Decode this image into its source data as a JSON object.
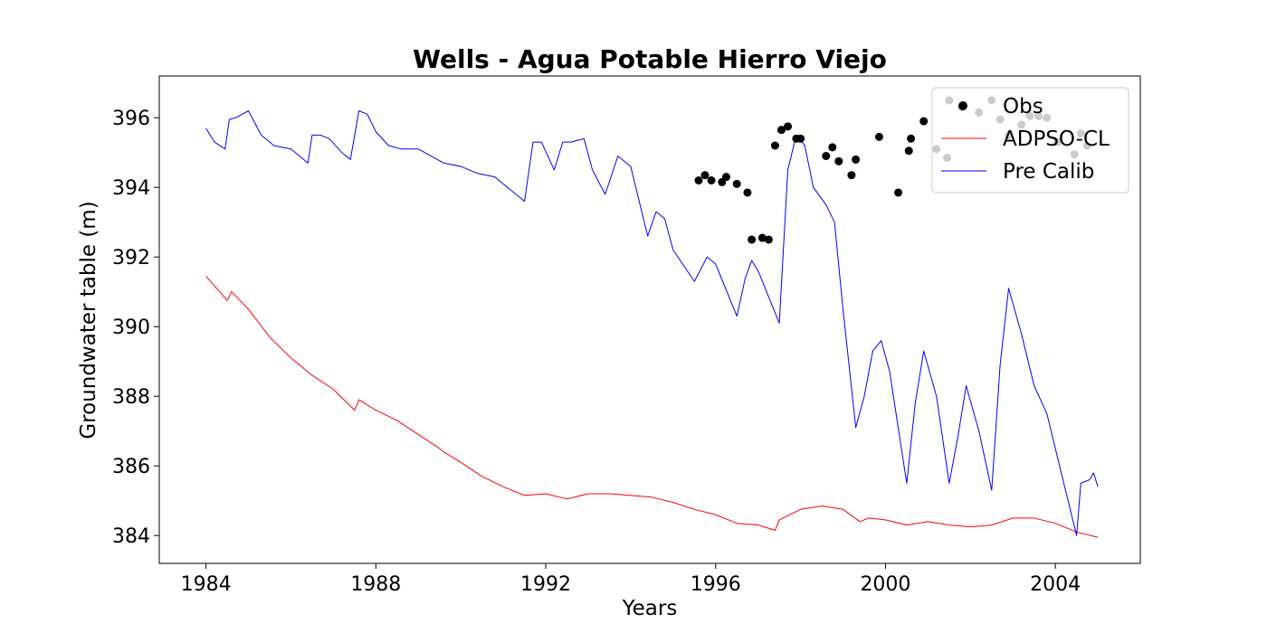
{
  "chart_data": {
    "type": "line",
    "title": "Wells - Agua Potable Hierro Viejo",
    "xlabel": "Years",
    "ylabel": "Groundwater table (m)",
    "xlim": [
      1982.9,
      2006.0
    ],
    "ylim": [
      383.2,
      397.2
    ],
    "x_ticks": [
      1984,
      1988,
      1992,
      1996,
      2000,
      2004
    ],
    "x_tick_labels": [
      "1984",
      "1988",
      "1992",
      "1996",
      "2000",
      "2004"
    ],
    "y_ticks": [
      384,
      386,
      388,
      390,
      392,
      394,
      396
    ],
    "y_tick_labels": [
      "384",
      "386",
      "388",
      "390",
      "392",
      "394",
      "396"
    ],
    "grid": false,
    "legend_position": "upper right",
    "legend": [
      "Obs",
      "ADPSO-CL",
      "Pre Calib"
    ],
    "series": [
      {
        "name": "Obs",
        "kind": "scatter",
        "color": "#000000",
        "x": [
          1995.6,
          1995.75,
          1995.9,
          1996.15,
          1996.25,
          1996.5,
          1996.75,
          1996.85,
          1997.1,
          1997.25,
          1997.4,
          1997.55,
          1997.7,
          1997.9,
          1998.0,
          1998.6,
          1998.75,
          1998.9,
          1999.2,
          1999.3,
          1999.85,
          2000.3,
          2000.55,
          2000.6,
          2000.9,
          2001.2,
          2001.45,
          2001.5,
          2001.8,
          2002.2,
          2002.5,
          2002.7,
          2002.9,
          2003.2,
          2003.4,
          2003.6,
          2003.8,
          2004.05,
          2004.45,
          2004.6,
          2004.75
        ],
        "y": [
          394.2,
          394.35,
          394.2,
          394.15,
          394.3,
          394.1,
          393.85,
          392.5,
          392.55,
          392.5,
          395.2,
          395.65,
          395.75,
          395.4,
          395.4,
          394.9,
          395.15,
          394.75,
          394.35,
          394.8,
          395.45,
          393.85,
          395.05,
          395.4,
          395.9,
          395.1,
          394.85,
          396.5,
          396.3,
          396.15,
          396.5,
          395.95,
          395.5,
          395.8,
          396.05,
          396.05,
          396.0,
          395.3,
          394.95,
          395.55,
          395.2
        ]
      },
      {
        "name": "ADPSO-CL",
        "kind": "line",
        "color": "#ff0000",
        "x": [
          1984.0,
          1984.5,
          1984.6,
          1985.0,
          1985.5,
          1986.0,
          1986.5,
          1987.0,
          1987.5,
          1987.6,
          1988.0,
          1988.5,
          1989.0,
          1989.5,
          1989.6,
          1990.0,
          1990.5,
          1991.0,
          1991.5,
          1992.0,
          1992.5,
          1993.0,
          1993.5,
          1994.0,
          1994.5,
          1995.0,
          1995.5,
          1996.0,
          1996.5,
          1997.0,
          1997.4,
          1997.5,
          1998.0,
          1998.5,
          1999.0,
          1999.4,
          1999.6,
          2000.0,
          2000.5,
          2001.0,
          2001.5,
          2002.0,
          2002.5,
          2003.0,
          2003.5,
          2004.0,
          2004.5,
          2005.0
        ],
        "y": [
          391.45,
          390.75,
          391.0,
          390.5,
          389.7,
          389.1,
          388.6,
          388.2,
          387.6,
          387.9,
          387.6,
          387.3,
          386.9,
          386.5,
          386.4,
          386.1,
          385.7,
          385.4,
          385.15,
          385.2,
          385.05,
          385.2,
          385.2,
          385.15,
          385.1,
          384.95,
          384.75,
          384.6,
          384.35,
          384.3,
          384.15,
          384.45,
          384.75,
          384.85,
          384.75,
          384.4,
          384.5,
          384.45,
          384.3,
          384.4,
          384.3,
          384.25,
          384.3,
          384.5,
          384.5,
          384.35,
          384.1,
          383.95
        ]
      },
      {
        "name": "Pre Calib",
        "kind": "line",
        "color": "#0000ff",
        "x": [
          1984.0,
          1984.2,
          1984.45,
          1984.55,
          1984.7,
          1985.0,
          1985.3,
          1985.6,
          1986.0,
          1986.4,
          1986.5,
          1986.7,
          1986.9,
          1987.2,
          1987.4,
          1987.6,
          1987.8,
          1988.0,
          1988.3,
          1988.6,
          1989.0,
          1989.3,
          1989.6,
          1990.0,
          1990.4,
          1990.8,
          1991.2,
          1991.5,
          1991.7,
          1991.9,
          1992.2,
          1992.4,
          1992.6,
          1992.9,
          1993.1,
          1993.4,
          1993.7,
          1994.0,
          1994.4,
          1994.6,
          1994.8,
          1995.0,
          1995.5,
          1995.8,
          1996.0,
          1996.2,
          1996.5,
          1996.7,
          1996.85,
          1997.0,
          1997.5,
          1997.7,
          1997.9,
          1998.1,
          1998.3,
          1998.6,
          1998.8,
          1999.0,
          1999.3,
          1999.5,
          1999.7,
          1999.9,
          2000.1,
          2000.5,
          2000.7,
          2000.9,
          2001.2,
          2001.5,
          2001.7,
          2001.9,
          2002.2,
          2002.5,
          2002.7,
          2002.9,
          2003.2,
          2003.5,
          2003.8,
          2004.1,
          2004.5,
          2004.6,
          2004.8,
          2004.9,
          2005.0
        ],
        "y": [
          395.7,
          395.3,
          395.1,
          395.95,
          396.0,
          396.2,
          395.5,
          395.2,
          395.1,
          394.7,
          395.5,
          395.5,
          395.4,
          395.0,
          394.8,
          396.2,
          396.1,
          395.6,
          395.2,
          395.1,
          395.1,
          394.9,
          394.7,
          394.6,
          394.4,
          394.3,
          393.9,
          393.6,
          395.3,
          395.3,
          394.5,
          395.3,
          395.3,
          395.4,
          394.5,
          393.8,
          394.9,
          394.6,
          392.6,
          393.3,
          393.1,
          392.2,
          391.3,
          392.0,
          391.8,
          391.2,
          390.3,
          391.4,
          391.9,
          391.6,
          390.1,
          394.5,
          395.5,
          395.2,
          394.0,
          393.5,
          393.0,
          390.5,
          387.1,
          388.0,
          389.3,
          389.6,
          388.7,
          385.5,
          387.8,
          389.3,
          388.0,
          385.5,
          386.8,
          388.3,
          387.0,
          385.3,
          388.9,
          391.1,
          389.8,
          388.3,
          387.5,
          386.0,
          384.0,
          385.5,
          385.6,
          385.8,
          385.4
        ]
      }
    ]
  }
}
